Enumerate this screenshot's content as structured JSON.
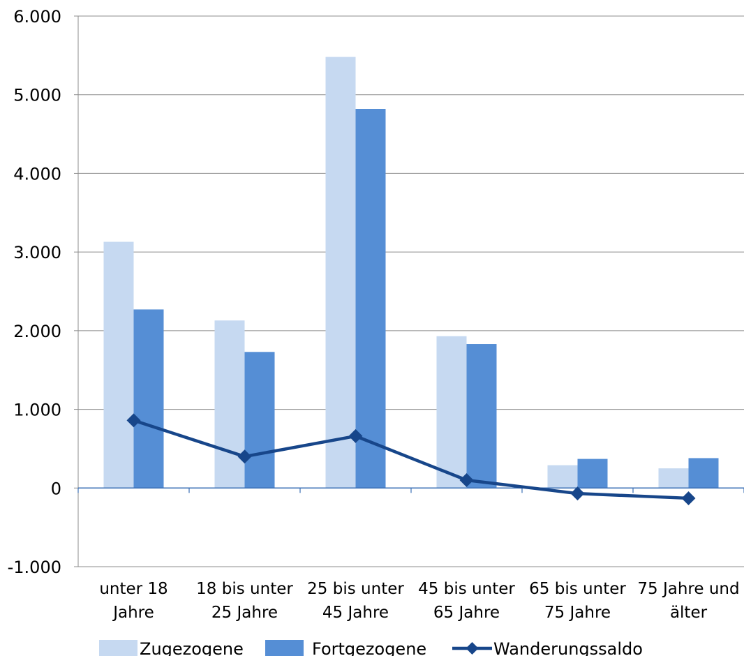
{
  "chart_data": {
    "type": "bar",
    "categories": [
      [
        "unter 18",
        "Jahre"
      ],
      [
        "18 bis unter",
        "25 Jahre"
      ],
      [
        "25 bis unter",
        "45 Jahre"
      ],
      [
        "45 bis unter",
        "65 Jahre"
      ],
      [
        "65 bis unter",
        "75 Jahre"
      ],
      [
        "75 Jahre und",
        "älter"
      ]
    ],
    "series": [
      {
        "name": "Zugezogene",
        "kind": "bar",
        "color": "#c6d9f1",
        "values": [
          3130,
          2130,
          5480,
          1930,
          290,
          250
        ]
      },
      {
        "name": "Fortgezogene",
        "kind": "bar",
        "color": "#558ed5",
        "values": [
          2270,
          1730,
          4820,
          1830,
          370,
          380
        ]
      },
      {
        "name": "Wanderungssaldo",
        "kind": "line",
        "marker": "diamond",
        "color": "#17468a",
        "values": [
          860,
          400,
          660,
          100,
          -70,
          -130
        ]
      }
    ],
    "y_ticks": [
      "-1.000",
      "0",
      "1.000",
      "2.000",
      "3.000",
      "4.000",
      "5.000",
      "6.000"
    ],
    "ylim": [
      -1000,
      6000
    ],
    "ytick_step": 1000,
    "grid": true,
    "legend_position": "bottom"
  }
}
